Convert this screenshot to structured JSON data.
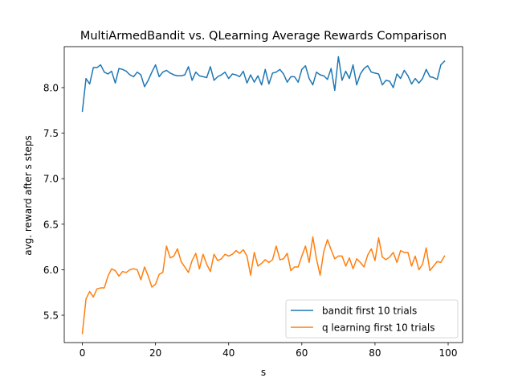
{
  "chart_data": {
    "type": "line",
    "title": "MultiArmedBandit vs. QLearning Average Rewards Comparison",
    "xlabel": "s",
    "ylabel": "avg. reward after s steps",
    "xlim": [
      -4.95,
      103.95
    ],
    "ylim": [
      5.2,
      8.45
    ],
    "xticks": [
      0,
      20,
      40,
      60,
      80,
      100
    ],
    "yticks": [
      5.5,
      6.0,
      6.5,
      7.0,
      7.5,
      8.0
    ],
    "ytick_labels": [
      "5.5",
      "6.0",
      "6.5",
      "7.0",
      "7.5",
      "8.0"
    ],
    "grid": false,
    "legend": "lower-right",
    "x": [
      0,
      1,
      2,
      3,
      4,
      5,
      6,
      7,
      8,
      9,
      10,
      11,
      12,
      13,
      14,
      15,
      16,
      17,
      18,
      19,
      20,
      21,
      22,
      23,
      24,
      25,
      26,
      27,
      28,
      29,
      30,
      31,
      32,
      33,
      34,
      35,
      36,
      37,
      38,
      39,
      40,
      41,
      42,
      43,
      44,
      45,
      46,
      47,
      48,
      49,
      50,
      51,
      52,
      53,
      54,
      55,
      56,
      57,
      58,
      59,
      60,
      61,
      62,
      63,
      64,
      65,
      66,
      67,
      68,
      69,
      70,
      71,
      72,
      73,
      74,
      75,
      76,
      77,
      78,
      79,
      80,
      81,
      82,
      83,
      84,
      85,
      86,
      87,
      88,
      89,
      90,
      91,
      92,
      93,
      94,
      95,
      96,
      97,
      98,
      99
    ],
    "series": [
      {
        "name": "bandit first 10 trials",
        "color": "#1f77b4",
        "values": [
          7.74,
          8.1,
          8.04,
          8.22,
          8.22,
          8.25,
          8.17,
          8.15,
          8.18,
          8.05,
          8.21,
          8.2,
          8.18,
          8.14,
          8.12,
          8.17,
          8.14,
          8.01,
          8.08,
          8.17,
          8.25,
          8.12,
          8.17,
          8.19,
          8.16,
          8.14,
          8.13,
          8.13,
          8.14,
          8.23,
          8.08,
          8.17,
          8.13,
          8.12,
          8.11,
          8.23,
          8.08,
          8.12,
          8.14,
          8.17,
          8.1,
          8.15,
          8.14,
          8.12,
          8.18,
          8.05,
          8.14,
          8.06,
          8.13,
          8.03,
          8.2,
          8.04,
          8.16,
          8.17,
          8.2,
          8.15,
          8.06,
          8.12,
          8.12,
          8.06,
          8.2,
          8.24,
          8.1,
          8.03,
          8.17,
          8.14,
          8.13,
          8.09,
          8.21,
          7.97,
          8.34,
          8.08,
          8.18,
          8.1,
          8.25,
          8.03,
          8.15,
          8.21,
          8.24,
          8.17,
          8.16,
          8.15,
          8.03,
          8.08,
          8.07,
          8.0,
          8.15,
          8.1,
          8.19,
          8.13,
          8.04,
          8.1,
          8.05,
          8.1,
          8.2,
          8.12,
          8.11,
          8.09,
          8.25,
          8.29
        ]
      },
      {
        "name": "q learning first 10 trials",
        "color": "#ff7f0e",
        "values": [
          5.3,
          5.68,
          5.76,
          5.7,
          5.79,
          5.8,
          5.8,
          5.93,
          6.01,
          5.99,
          5.93,
          5.98,
          5.97,
          6.0,
          6.01,
          6.0,
          5.89,
          6.03,
          5.93,
          5.81,
          5.84,
          5.95,
          5.97,
          6.26,
          6.13,
          6.15,
          6.23,
          6.09,
          6.03,
          5.97,
          6.1,
          6.18,
          6.01,
          6.17,
          6.06,
          5.98,
          6.17,
          6.1,
          6.12,
          6.17,
          6.15,
          6.17,
          6.21,
          6.18,
          6.22,
          6.15,
          5.94,
          6.19,
          6.04,
          6.07,
          6.11,
          6.08,
          6.11,
          6.26,
          6.11,
          6.12,
          6.18,
          5.99,
          6.03,
          6.03,
          6.15,
          6.26,
          6.08,
          6.36,
          6.12,
          5.94,
          6.2,
          6.33,
          6.22,
          6.12,
          6.15,
          6.15,
          6.04,
          6.13,
          6.01,
          6.12,
          6.08,
          6.03,
          6.16,
          6.23,
          6.1,
          6.35,
          6.14,
          6.11,
          6.14,
          6.19,
          6.08,
          6.21,
          6.19,
          6.19,
          6.04,
          6.15,
          6.0,
          6.06,
          6.24,
          5.99,
          6.04,
          6.09,
          6.08,
          6.15
        ]
      }
    ]
  }
}
